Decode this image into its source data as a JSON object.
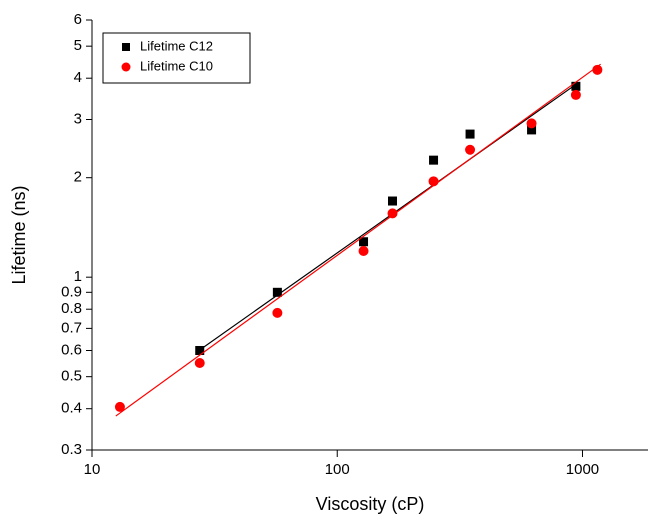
{
  "chart_data": {
    "type": "scatter",
    "xlabel": "Viscosity (cP)",
    "ylabel": "Lifetime (ns)",
    "xscale": "log",
    "yscale": "log",
    "xlim": [
      10,
      1850
    ],
    "ylim": [
      0.3,
      6
    ],
    "xticks": [
      10,
      100,
      1000
    ],
    "yticks": [
      0.3,
      0.4,
      0.5,
      0.6,
      0.7,
      0.8,
      0.9,
      1,
      2,
      3,
      4,
      5,
      6
    ],
    "legend": "upper left",
    "series": [
      {
        "name": "Lifetime C12",
        "color": "#000000",
        "marker": "square",
        "x": [
          27.5,
          57,
          128,
          168,
          247,
          348,
          620,
          940
        ],
        "values": [
          0.6,
          0.9,
          1.28,
          1.7,
          2.26,
          2.71,
          2.79,
          3.78
        ],
        "fit": {
          "x": [
            27.3,
            940
          ],
          "values": [
            0.6,
            3.83
          ]
        }
      },
      {
        "name": "Lifetime C10",
        "color": "#ff0000",
        "marker": "circle",
        "x": [
          13,
          27.5,
          57,
          128,
          168,
          247,
          348,
          620,
          940,
          1150
        ],
        "values": [
          0.405,
          0.55,
          0.78,
          1.2,
          1.56,
          1.95,
          2.43,
          2.92,
          3.56,
          4.24
        ],
        "fit": {
          "x": [
            12.5,
            1186
          ],
          "values": [
            0.38,
            4.41
          ]
        }
      }
    ]
  }
}
